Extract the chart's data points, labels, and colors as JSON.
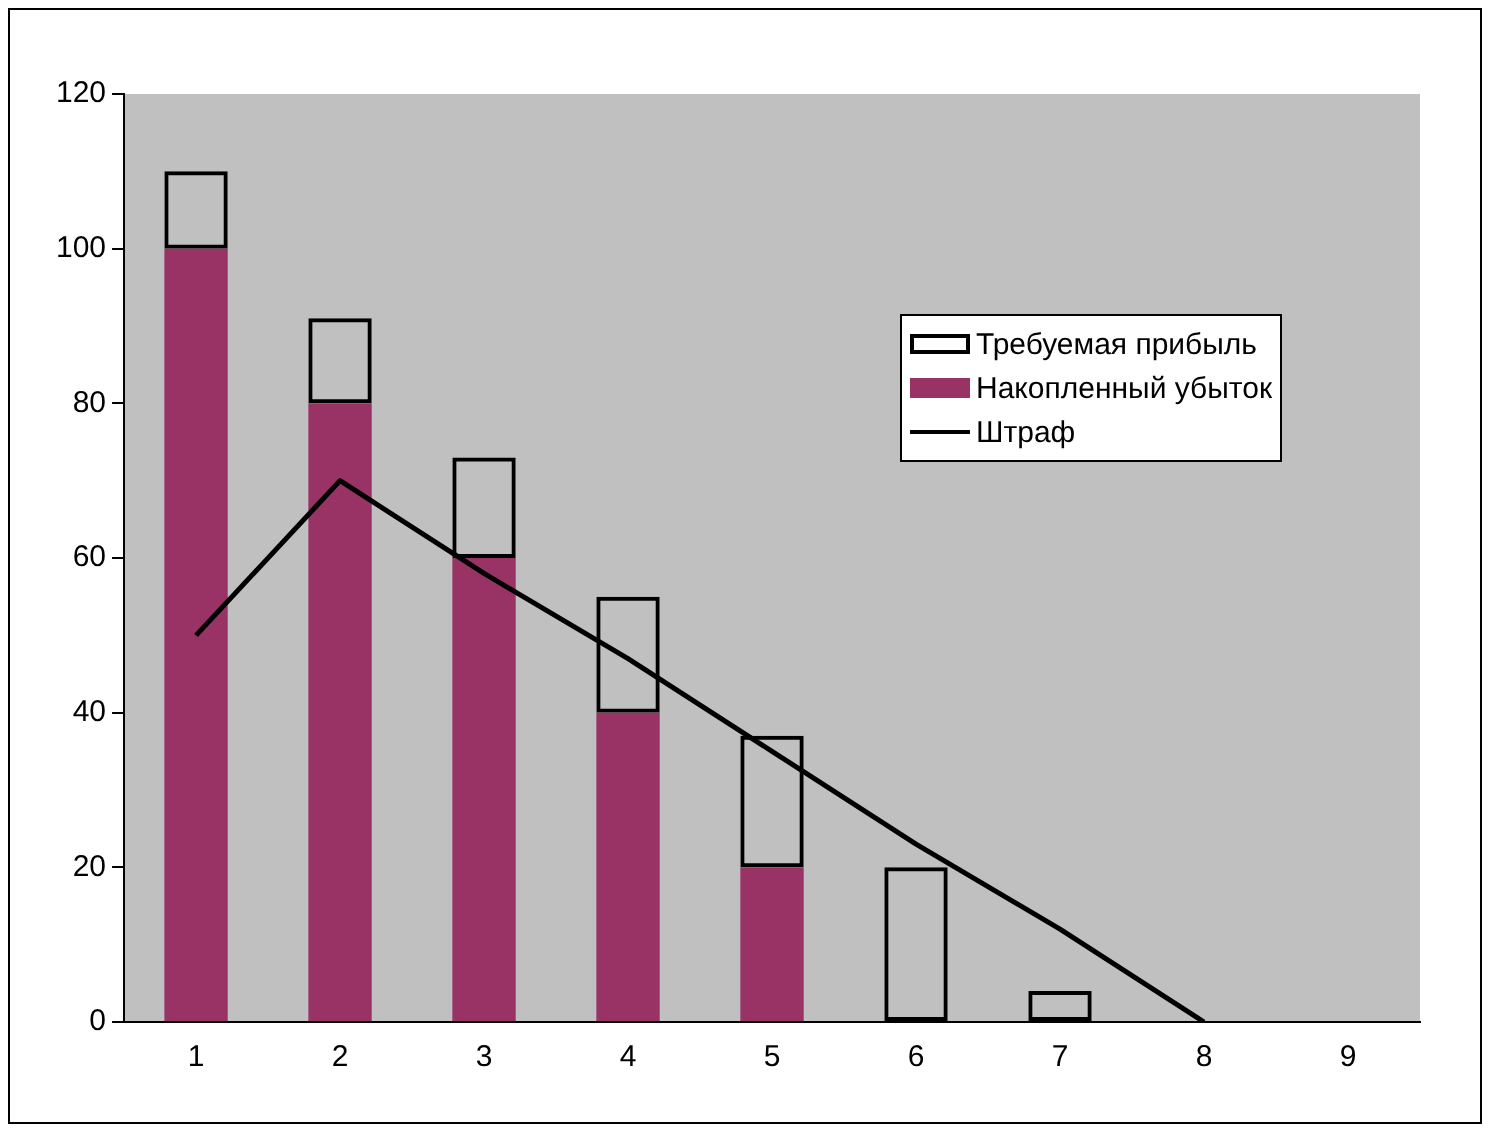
{
  "chart_data": {
    "type": "bar",
    "stacked": true,
    "categories": [
      "1",
      "2",
      "3",
      "4",
      "5",
      "6",
      "7",
      "8",
      "9"
    ],
    "series": [
      {
        "name": "Накопленный убыток",
        "color": "#993366",
        "values": [
          100,
          80,
          60,
          40,
          20,
          0,
          0,
          0,
          0
        ]
      },
      {
        "name": "Требуемая прибыль",
        "color": "#000000",
        "values": [
          10,
          11,
          13,
          15,
          17,
          20,
          4,
          null,
          null
        ]
      },
      {
        "name": "Штраф",
        "type": "line",
        "color": "#000000",
        "values": [
          50,
          70,
          58,
          47,
          35,
          23,
          12,
          0,
          null
        ]
      }
    ],
    "ylim": [
      0,
      120
    ],
    "yticks": [
      0,
      20,
      40,
      60,
      80,
      100,
      120
    ],
    "grid": false,
    "legend": "top right",
    "marker": "none"
  }
}
